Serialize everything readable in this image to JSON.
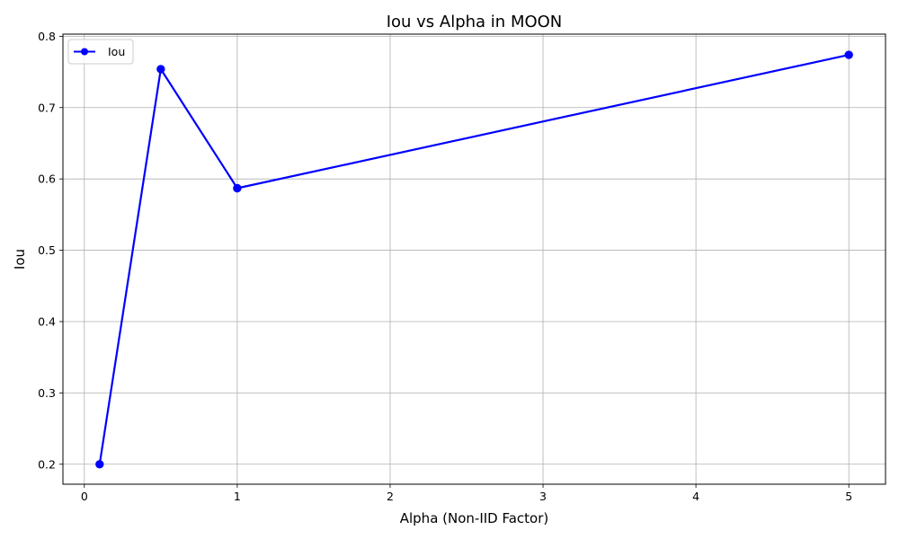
{
  "chart_data": {
    "type": "line",
    "title": "Iou vs Alpha in MOON",
    "xlabel": "Alpha (Non-IID Factor)",
    "ylabel": "Iou",
    "xlim": [
      -0.14,
      5.24
    ],
    "ylim": [
      0.172,
      0.803
    ],
    "xticks": [
      0,
      1,
      2,
      3,
      4,
      5
    ],
    "yticks": [
      0.2,
      0.3,
      0.4,
      0.5,
      0.6,
      0.7,
      0.8
    ],
    "grid": true,
    "legend_position": "top-left",
    "series": [
      {
        "name": "Iou",
        "color": "#0000ff",
        "marker": "circle",
        "x": [
          0.1,
          0.5,
          1,
          5
        ],
        "y": [
          0.2,
          0.754,
          0.587,
          0.774
        ]
      }
    ]
  }
}
